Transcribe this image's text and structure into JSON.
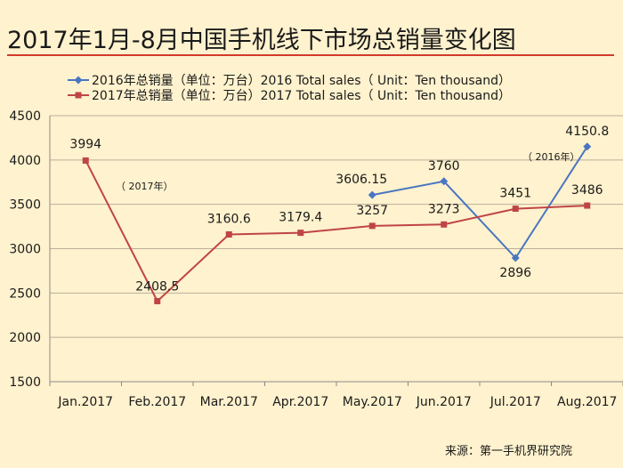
{
  "chart_data": {
    "type": "line",
    "title": "2017年1月-8月中国手机线下市场总销量变化图",
    "categories": [
      "Jan.2017",
      "Feb.2017",
      "Mar.2017",
      "Apr.2017",
      "May.2017",
      "Jun.2017",
      "Jul.2017",
      "Aug.2017"
    ],
    "ylim": [
      1500,
      4500
    ],
    "yticks": [
      "1500",
      "2000",
      "2500",
      "3000",
      "3500",
      "4000",
      "4500"
    ],
    "grid": true,
    "legend_position": "top",
    "series": [
      {
        "name": "2016年总销量（单位：万台）2016 Total sales（ Unit：Ten thousand）",
        "color": "#4a76c1",
        "marker": "diamond",
        "values": [
          null,
          null,
          null,
          null,
          3606.15,
          3760,
          2896,
          4150.8
        ],
        "labels": [
          "",
          "",
          "",
          "",
          "3606.15",
          "3760",
          "2896",
          "4150.8"
        ]
      },
      {
        "name": "2017年总销量（单位：万台）2017 Total sales（ Unit：Ten thousand）",
        "color": "#bf4545",
        "marker": "square",
        "values": [
          3994,
          2408.5,
          3160.6,
          3179.4,
          3257,
          3273,
          3451,
          3486
        ],
        "labels": [
          "3994",
          "2408.5",
          "3160.6",
          "3179.4",
          "3257",
          "3273",
          "3451",
          "3486"
        ]
      }
    ],
    "annotations": [
      "（ 2017年）",
      "（ 2016年）"
    ],
    "source": "来源：第一手机界研究院"
  }
}
